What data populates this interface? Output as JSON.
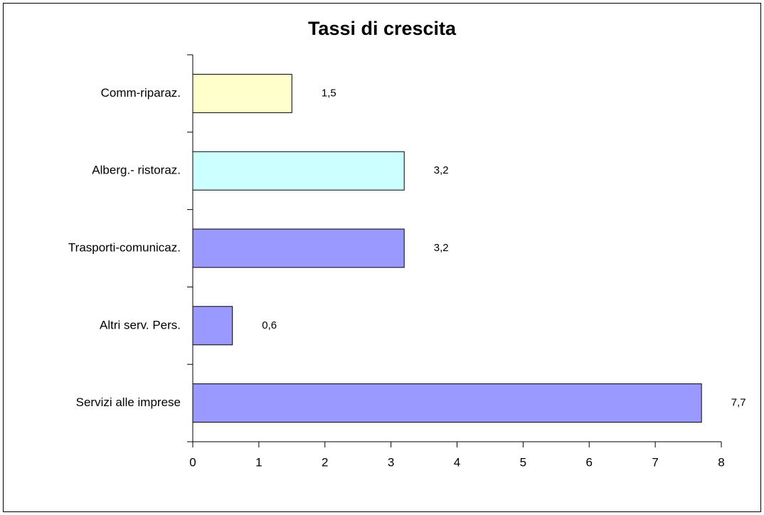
{
  "chart_data": {
    "type": "bar",
    "orientation": "horizontal",
    "title": "Tassi di crescita",
    "categories": [
      "Comm-riparaz.",
      "Alberg.- ristoraz.",
      "Trasporti-comunicaz.",
      "Altri serv. Pers.",
      "Servizi alle imprese"
    ],
    "values": [
      1.5,
      3.2,
      3.2,
      0.6,
      7.7
    ],
    "value_labels": [
      "1,5",
      "3,2",
      "3,2",
      "0,6",
      "7,7"
    ],
    "colors": [
      "#ffffcc",
      "#ccffff",
      "#9999ff",
      "#9999ff",
      "#9999ff"
    ],
    "xlim": [
      0,
      8
    ],
    "xticks": [
      0,
      1,
      2,
      3,
      4,
      5,
      6,
      7,
      8
    ],
    "grid": false
  }
}
